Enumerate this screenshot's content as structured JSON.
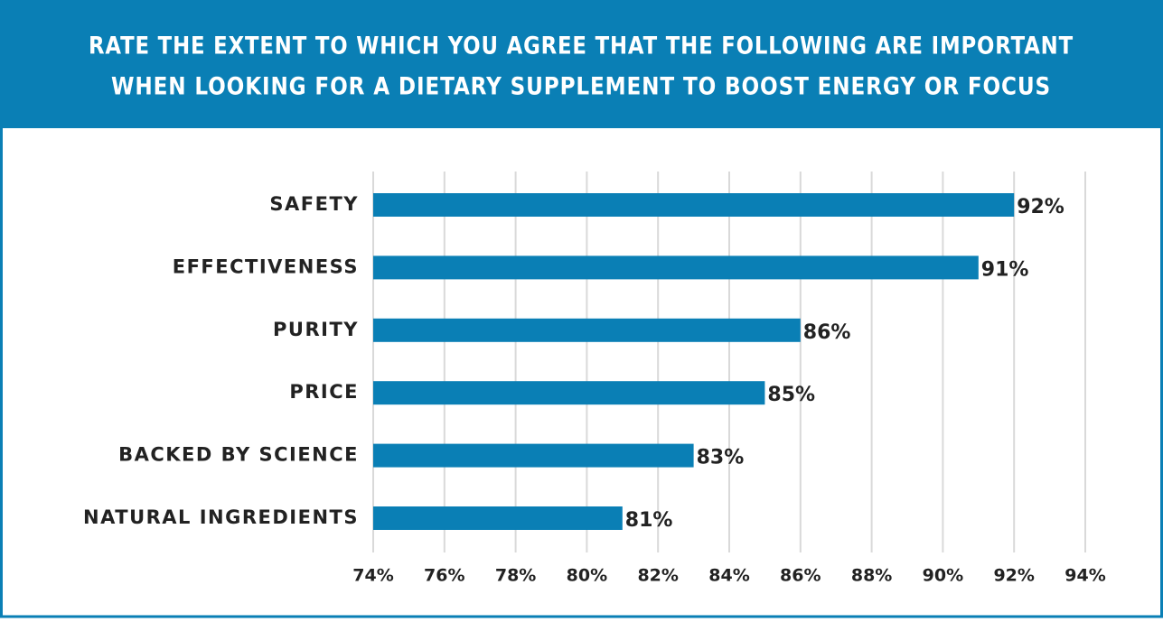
{
  "chart_data": {
    "type": "bar",
    "orientation": "horizontal",
    "title": [
      "RATE THE EXTENT TO WHICH YOU AGREE THAT THE FOLLOWING ARE IMPORTANT",
      "WHEN LOOKING FOR A DIETARY SUPPLEMENT TO BOOST ENERGY OR FOCUS"
    ],
    "categories": [
      "SAFETY",
      "EFFECTIVENESS",
      "PURITY",
      "PRICE",
      "BACKED BY SCIENCE",
      "NATURAL INGREDIENTS"
    ],
    "values": [
      92,
      91,
      86,
      85,
      83,
      81
    ],
    "value_labels": [
      "92%",
      "91%",
      "86%",
      "85%",
      "83%",
      "81%"
    ],
    "color": "#0a7fb5",
    "xlim": [
      74,
      94
    ],
    "xticks": [
      {
        "value": 74,
        "label": "74%"
      },
      {
        "value": 76,
        "label": "76%"
      },
      {
        "value": 78,
        "label": "78%"
      },
      {
        "value": 80,
        "label": "80%"
      },
      {
        "value": 82,
        "label": "82%"
      },
      {
        "value": 84,
        "label": "84%"
      },
      {
        "value": 86,
        "label": "86%"
      },
      {
        "value": 88,
        "label": "88%"
      },
      {
        "value": 90,
        "label": "90%"
      },
      {
        "value": 92,
        "label": "92%"
      },
      {
        "value": 94,
        "label": "94%"
      }
    ],
    "grid": true
  }
}
